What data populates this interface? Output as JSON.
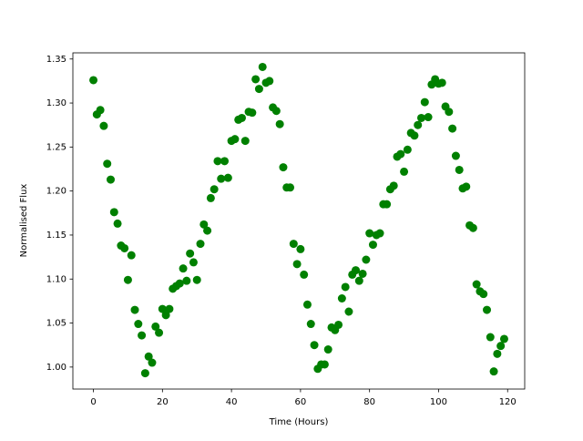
{
  "chart_data": {
    "type": "scatter",
    "xlabel": "Time (Hours)",
    "ylabel": "Normalised Flux",
    "color": "#008000",
    "x": [
      0,
      1,
      2,
      3,
      4,
      5,
      6,
      7,
      8,
      9,
      10,
      11,
      12,
      13,
      14,
      15,
      16,
      17,
      18,
      19,
      20,
      21,
      22,
      23,
      24,
      25,
      26,
      27,
      28,
      29,
      30,
      31,
      32,
      33,
      34,
      35,
      36,
      37,
      38,
      39,
      40,
      41,
      42,
      43,
      44,
      45,
      46,
      47,
      48,
      49,
      50,
      51,
      52,
      53,
      54,
      55,
      56,
      57,
      58,
      59,
      60,
      61,
      62,
      63,
      64,
      65,
      66,
      67,
      68,
      69,
      70,
      71,
      72,
      73,
      74,
      75,
      76,
      77,
      78,
      79,
      80,
      81,
      82,
      83,
      84,
      85,
      86,
      87,
      88,
      89,
      90,
      91,
      92,
      93,
      94,
      95,
      96,
      97,
      98,
      99,
      100,
      101,
      102,
      103,
      104,
      105,
      106,
      107,
      108,
      109,
      110,
      111,
      112,
      113,
      114,
      115,
      116,
      117,
      118,
      119
    ],
    "values": [
      1.326,
      1.287,
      1.292,
      1.274,
      1.231,
      1.213,
      1.176,
      1.163,
      1.138,
      1.135,
      1.099,
      1.127,
      1.065,
      1.049,
      1.036,
      0.993,
      1.012,
      1.005,
      1.046,
      1.039,
      1.066,
      1.059,
      1.066,
      1.089,
      1.092,
      1.095,
      1.112,
      1.098,
      1.129,
      1.119,
      1.099,
      1.14,
      1.162,
      1.155,
      1.192,
      1.202,
      1.234,
      1.214,
      1.234,
      1.215,
      1.257,
      1.259,
      1.281,
      1.283,
      1.257,
      1.29,
      1.289,
      1.327,
      1.316,
      1.341,
      1.323,
      1.325,
      1.295,
      1.291,
      1.276,
      1.227,
      1.204,
      1.204,
      1.14,
      1.117,
      1.134,
      1.105,
      1.071,
      1.049,
      1.025,
      0.998,
      1.003,
      1.003,
      1.02,
      1.045,
      1.042,
      1.048,
      1.078,
      1.091,
      1.063,
      1.105,
      1.11,
      1.098,
      1.106,
      1.122,
      1.152,
      1.139,
      1.15,
      1.152,
      1.185,
      1.185,
      1.202,
      1.206,
      1.239,
      1.242,
      1.222,
      1.247,
      1.266,
      1.263,
      1.275,
      1.283,
      1.301,
      1.284,
      1.321,
      1.327,
      1.322,
      1.323,
      1.296,
      1.29,
      1.271,
      1.24,
      1.224,
      1.203,
      1.205,
      1.161,
      1.158,
      1.094,
      1.086,
      1.083,
      1.065,
      1.034,
      0.995,
      1.015,
      1.024,
      1.032
    ],
    "xlim": [
      -5.95,
      124.95
    ],
    "ylim": [
      0.975,
      1.357
    ],
    "xticks": [
      0,
      20,
      40,
      60,
      80,
      100,
      120
    ],
    "yticks": [
      {
        "value": 1.0,
        "label": "1.00"
      },
      1.05,
      {
        "value": 1.1,
        "label": "1.10"
      },
      1.15,
      {
        "value": 1.2,
        "label": "1.20"
      },
      1.25,
      {
        "value": 1.3,
        "label": "1.30"
      },
      1.35
    ]
  }
}
